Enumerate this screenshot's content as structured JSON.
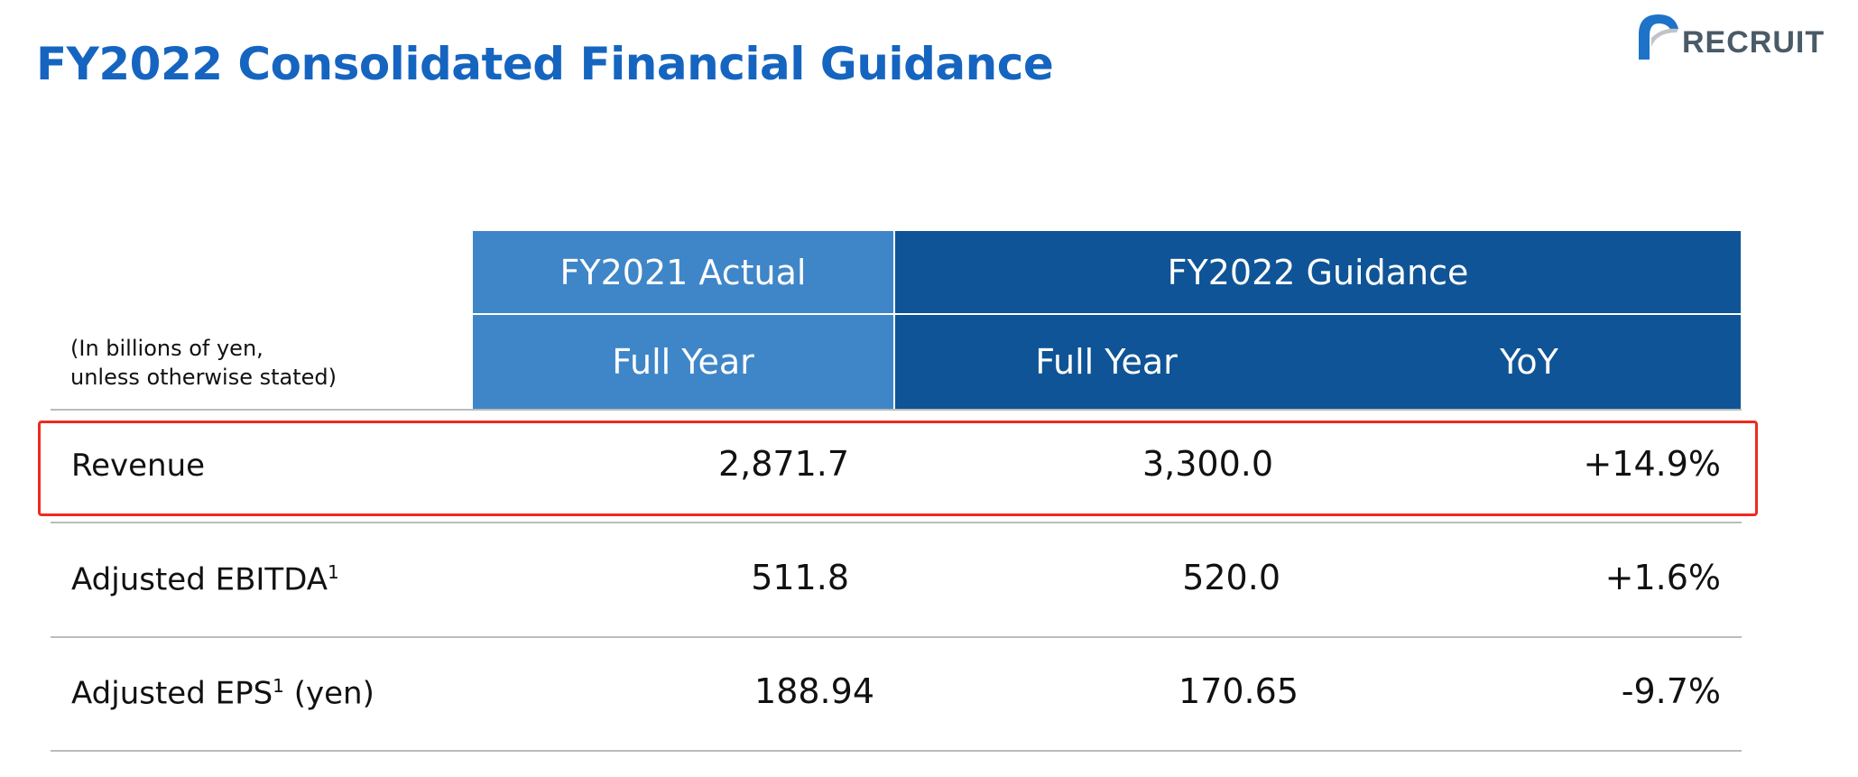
{
  "title": "FY2022 Consolidated Financial Guidance",
  "logo_text": "RECRUIT",
  "table": {
    "unit_note_line1": "(In billions of yen,",
    "unit_note_line2": "unless otherwise stated)",
    "header_groups": [
      "FY2021 Actual",
      "FY2022 Guidance"
    ],
    "subheaders": [
      "Full Year",
      "Full Year",
      "YoY"
    ],
    "rows": [
      {
        "label": "Revenue",
        "sup": "",
        "suffix": "",
        "fy2021": "2,871.7",
        "fy2022": "3,300.0",
        "yoy": "+14.9%",
        "highlighted": true
      },
      {
        "label": "Adjusted EBITDA",
        "sup": "1",
        "suffix": "",
        "fy2021": "511.8",
        "fy2022": "520.0",
        "yoy": "+1.6%"
      },
      {
        "label": "Adjusted EPS",
        "sup": "1",
        "suffix": " (yen)",
        "fy2021": "188.94",
        "fy2022": "170.65",
        "yoy": "-9.7%"
      }
    ]
  },
  "colors": {
    "title": "#1565c0",
    "header_light": "#3f86c8",
    "header_dark": "#0f5496",
    "highlight": "#f02a1e"
  }
}
